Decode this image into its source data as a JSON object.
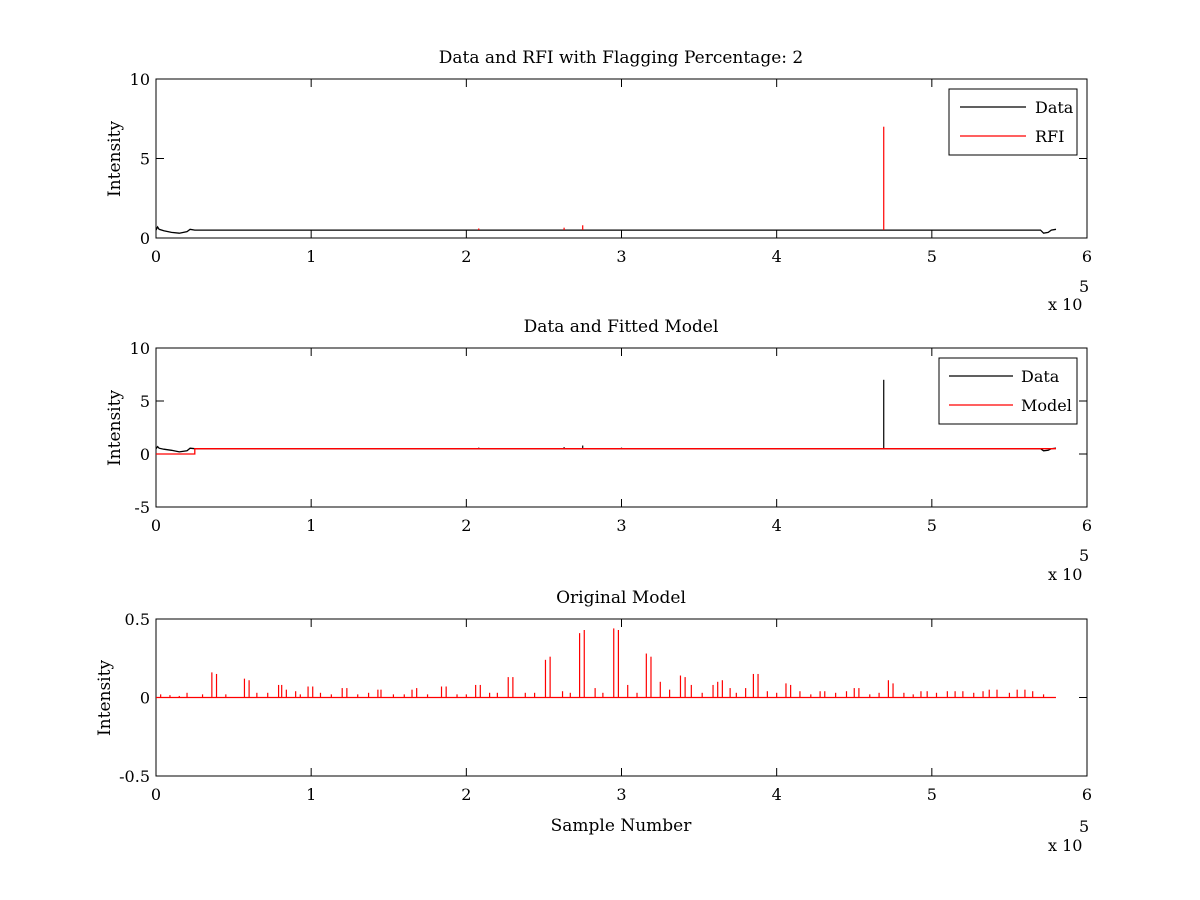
{
  "chart_data": [
    {
      "type": "line",
      "title": "Data and RFI with Flagging Percentage: 2",
      "xlabel": "",
      "ylabel": "Intensity",
      "xlim": [
        0,
        6
      ],
      "ylim": [
        0,
        10
      ],
      "x_ticks": [
        "0",
        "1",
        "2",
        "3",
        "4",
        "5",
        "6"
      ],
      "y_ticks": [
        "0",
        "5",
        "10"
      ],
      "x_multiplier": "x 10",
      "x_multiplier_exp": "5",
      "legend_position": "top-right",
      "legend": [
        {
          "name": "Data",
          "color": "#000000"
        },
        {
          "name": "RFI",
          "color": "#ff0000"
        }
      ],
      "series": [
        {
          "name": "Data",
          "color": "#000000",
          "baseline": 0.5,
          "x": [
            0,
            0.01,
            0.02,
            0.05,
            0.1,
            0.15,
            0.2,
            0.22,
            0.25,
            1,
            2,
            3,
            4,
            4.69,
            5,
            5.7,
            5.72,
            5.75,
            5.77,
            5.8
          ],
          "y": [
            0.5,
            0.7,
            0.55,
            0.45,
            0.35,
            0.3,
            0.4,
            0.55,
            0.5,
            0.5,
            0.5,
            0.5,
            0.5,
            0.5,
            0.5,
            0.5,
            0.3,
            0.35,
            0.5,
            0.55
          ]
        },
        {
          "name": "RFI",
          "color": "#ff0000",
          "spikes": [
            {
              "x": 2.08,
              "y": 0.6
            },
            {
              "x": 2.63,
              "y": 0.65
            },
            {
              "x": 2.75,
              "y": 0.8
            },
            {
              "x": 4.69,
              "y": 7.0
            }
          ]
        }
      ]
    },
    {
      "type": "line",
      "title": "Data and Fitted Model",
      "xlabel": "",
      "ylabel": "Intensity",
      "xlim": [
        0,
        6
      ],
      "ylim": [
        -5,
        10
      ],
      "x_ticks": [
        "0",
        "1",
        "2",
        "3",
        "4",
        "5",
        "6"
      ],
      "y_ticks": [
        "-5",
        "0",
        "5",
        "10"
      ],
      "x_multiplier": "x 10",
      "x_multiplier_exp": "5",
      "legend_position": "top-right",
      "legend": [
        {
          "name": "Data",
          "color": "#000000"
        },
        {
          "name": "Model",
          "color": "#ff0000"
        }
      ],
      "series": [
        {
          "name": "Data",
          "color": "#000000",
          "x": [
            0,
            0.01,
            0.02,
            0.05,
            0.1,
            0.15,
            0.2,
            0.22,
            0.25,
            1,
            2,
            3,
            4,
            5,
            5.7,
            5.72,
            5.75,
            5.77,
            5.8
          ],
          "y": [
            0.5,
            0.7,
            0.55,
            0.45,
            0.35,
            0.2,
            0.3,
            0.55,
            0.5,
            0.5,
            0.5,
            0.5,
            0.5,
            0.5,
            0.5,
            0.3,
            0.35,
            0.5,
            0.55
          ],
          "spikes": [
            {
              "x": 2.08,
              "y": 0.6
            },
            {
              "x": 2.63,
              "y": 0.65
            },
            {
              "x": 2.75,
              "y": 0.8
            },
            {
              "x": 3.0,
              "y": 0.6
            },
            {
              "x": 4.69,
              "y": 7.0
            }
          ]
        },
        {
          "name": "Model",
          "color": "#ff0000",
          "x": [
            0,
            0.25,
            0.25,
            5.8
          ],
          "y": [
            0.0,
            0.0,
            0.5,
            0.5
          ]
        }
      ]
    },
    {
      "type": "line",
      "title": "Original Model",
      "xlabel": "Sample Number",
      "ylabel": "Intensity",
      "xlim": [
        0,
        6
      ],
      "ylim": [
        -0.5,
        0.5
      ],
      "x_ticks": [
        "0",
        "1",
        "2",
        "3",
        "4",
        "5",
        "6"
      ],
      "y_ticks": [
        "-0.5",
        "0",
        "0.5"
      ],
      "x_multiplier": "x 10",
      "x_multiplier_exp": "5",
      "series": [
        {
          "color": "#ff0000",
          "x_end": 5.8,
          "spikes": [
            {
              "x": 0.03,
              "y": 0.02
            },
            {
              "x": 0.09,
              "y": 0.015
            },
            {
              "x": 0.15,
              "y": 0.01
            },
            {
              "x": 0.2,
              "y": 0.03
            },
            {
              "x": 0.3,
              "y": 0.02
            },
            {
              "x": 0.36,
              "y": 0.16
            },
            {
              "x": 0.39,
              "y": 0.15
            },
            {
              "x": 0.45,
              "y": 0.02
            },
            {
              "x": 0.57,
              "y": 0.12
            },
            {
              "x": 0.6,
              "y": 0.11
            },
            {
              "x": 0.65,
              "y": 0.03
            },
            {
              "x": 0.72,
              "y": 0.03
            },
            {
              "x": 0.79,
              "y": 0.08
            },
            {
              "x": 0.81,
              "y": 0.08
            },
            {
              "x": 0.84,
              "y": 0.05
            },
            {
              "x": 0.9,
              "y": 0.04
            },
            {
              "x": 0.93,
              "y": 0.02
            },
            {
              "x": 0.98,
              "y": 0.07
            },
            {
              "x": 1.01,
              "y": 0.07
            },
            {
              "x": 1.06,
              "y": 0.03
            },
            {
              "x": 1.13,
              "y": 0.02
            },
            {
              "x": 1.2,
              "y": 0.06
            },
            {
              "x": 1.23,
              "y": 0.06
            },
            {
              "x": 1.3,
              "y": 0.02
            },
            {
              "x": 1.37,
              "y": 0.03
            },
            {
              "x": 1.43,
              "y": 0.05
            },
            {
              "x": 1.45,
              "y": 0.05
            },
            {
              "x": 1.53,
              "y": 0.02
            },
            {
              "x": 1.6,
              "y": 0.02
            },
            {
              "x": 1.65,
              "y": 0.05
            },
            {
              "x": 1.68,
              "y": 0.06
            },
            {
              "x": 1.75,
              "y": 0.02
            },
            {
              "x": 1.84,
              "y": 0.07
            },
            {
              "x": 1.87,
              "y": 0.07
            },
            {
              "x": 1.94,
              "y": 0.02
            },
            {
              "x": 2.0,
              "y": 0.02
            },
            {
              "x": 2.06,
              "y": 0.08
            },
            {
              "x": 2.09,
              "y": 0.08
            },
            {
              "x": 2.15,
              "y": 0.03
            },
            {
              "x": 2.2,
              "y": 0.03
            },
            {
              "x": 2.27,
              "y": 0.13
            },
            {
              "x": 2.3,
              "y": 0.13
            },
            {
              "x": 2.38,
              "y": 0.03
            },
            {
              "x": 2.44,
              "y": 0.03
            },
            {
              "x": 2.51,
              "y": 0.24
            },
            {
              "x": 2.54,
              "y": 0.26
            },
            {
              "x": 2.62,
              "y": 0.04
            },
            {
              "x": 2.67,
              "y": 0.03
            },
            {
              "x": 2.73,
              "y": 0.41
            },
            {
              "x": 2.76,
              "y": 0.43
            },
            {
              "x": 2.83,
              "y": 0.06
            },
            {
              "x": 2.88,
              "y": 0.03
            },
            {
              "x": 2.95,
              "y": 0.44
            },
            {
              "x": 2.98,
              "y": 0.43
            },
            {
              "x": 3.04,
              "y": 0.08
            },
            {
              "x": 3.1,
              "y": 0.03
            },
            {
              "x": 3.16,
              "y": 0.28
            },
            {
              "x": 3.19,
              "y": 0.26
            },
            {
              "x": 3.25,
              "y": 0.1
            },
            {
              "x": 3.31,
              "y": 0.05
            },
            {
              "x": 3.38,
              "y": 0.14
            },
            {
              "x": 3.41,
              "y": 0.13
            },
            {
              "x": 3.45,
              "y": 0.08
            },
            {
              "x": 3.52,
              "y": 0.03
            },
            {
              "x": 3.59,
              "y": 0.08
            },
            {
              "x": 3.62,
              "y": 0.1
            },
            {
              "x": 3.65,
              "y": 0.11
            },
            {
              "x": 3.7,
              "y": 0.06
            },
            {
              "x": 3.74,
              "y": 0.03
            },
            {
              "x": 3.8,
              "y": 0.06
            },
            {
              "x": 3.85,
              "y": 0.15
            },
            {
              "x": 3.88,
              "y": 0.15
            },
            {
              "x": 3.94,
              "y": 0.04
            },
            {
              "x": 4.0,
              "y": 0.03
            },
            {
              "x": 4.06,
              "y": 0.09
            },
            {
              "x": 4.09,
              "y": 0.08
            },
            {
              "x": 4.15,
              "y": 0.04
            },
            {
              "x": 4.22,
              "y": 0.02
            },
            {
              "x": 4.28,
              "y": 0.04
            },
            {
              "x": 4.31,
              "y": 0.04
            },
            {
              "x": 4.38,
              "y": 0.03
            },
            {
              "x": 4.45,
              "y": 0.04
            },
            {
              "x": 4.5,
              "y": 0.06
            },
            {
              "x": 4.53,
              "y": 0.06
            },
            {
              "x": 4.6,
              "y": 0.02
            },
            {
              "x": 4.66,
              "y": 0.03
            },
            {
              "x": 4.72,
              "y": 0.11
            },
            {
              "x": 4.75,
              "y": 0.09
            },
            {
              "x": 4.82,
              "y": 0.03
            },
            {
              "x": 4.88,
              "y": 0.02
            },
            {
              "x": 4.93,
              "y": 0.04
            },
            {
              "x": 4.97,
              "y": 0.04
            },
            {
              "x": 5.03,
              "y": 0.03
            },
            {
              "x": 5.1,
              "y": 0.04
            },
            {
              "x": 5.15,
              "y": 0.04
            },
            {
              "x": 5.2,
              "y": 0.04
            },
            {
              "x": 5.27,
              "y": 0.03
            },
            {
              "x": 5.33,
              "y": 0.04
            },
            {
              "x": 5.37,
              "y": 0.05
            },
            {
              "x": 5.42,
              "y": 0.05
            },
            {
              "x": 5.5,
              "y": 0.03
            },
            {
              "x": 5.55,
              "y": 0.05
            },
            {
              "x": 5.6,
              "y": 0.05
            },
            {
              "x": 5.65,
              "y": 0.04
            },
            {
              "x": 5.72,
              "y": 0.02
            }
          ]
        }
      ]
    }
  ]
}
